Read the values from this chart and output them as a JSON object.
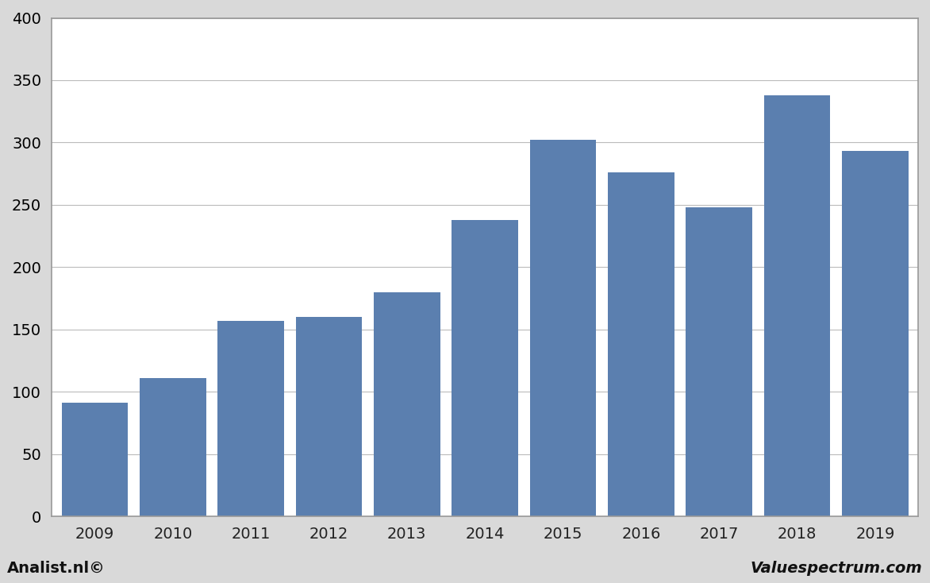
{
  "categories": [
    "2009",
    "2010",
    "2011",
    "2012",
    "2013",
    "2014",
    "2015",
    "2016",
    "2017",
    "2018",
    "2019"
  ],
  "values": [
    91,
    111,
    157,
    160,
    180,
    238,
    302,
    276,
    248,
    338,
    293
  ],
  "bar_color": "#5b7faf",
  "ylim": [
    0,
    400
  ],
  "yticks": [
    0,
    50,
    100,
    150,
    200,
    250,
    300,
    350,
    400
  ],
  "figure_background": "#d9d9d9",
  "plot_background": "#ffffff",
  "grid_color": "#bbbbbb",
  "footer_left": "Analist.nl©",
  "footer_right": "Valuespectrum.com",
  "footer_fontsize": 14,
  "tick_fontsize": 14,
  "border_color": "#999999",
  "bar_width": 0.85
}
